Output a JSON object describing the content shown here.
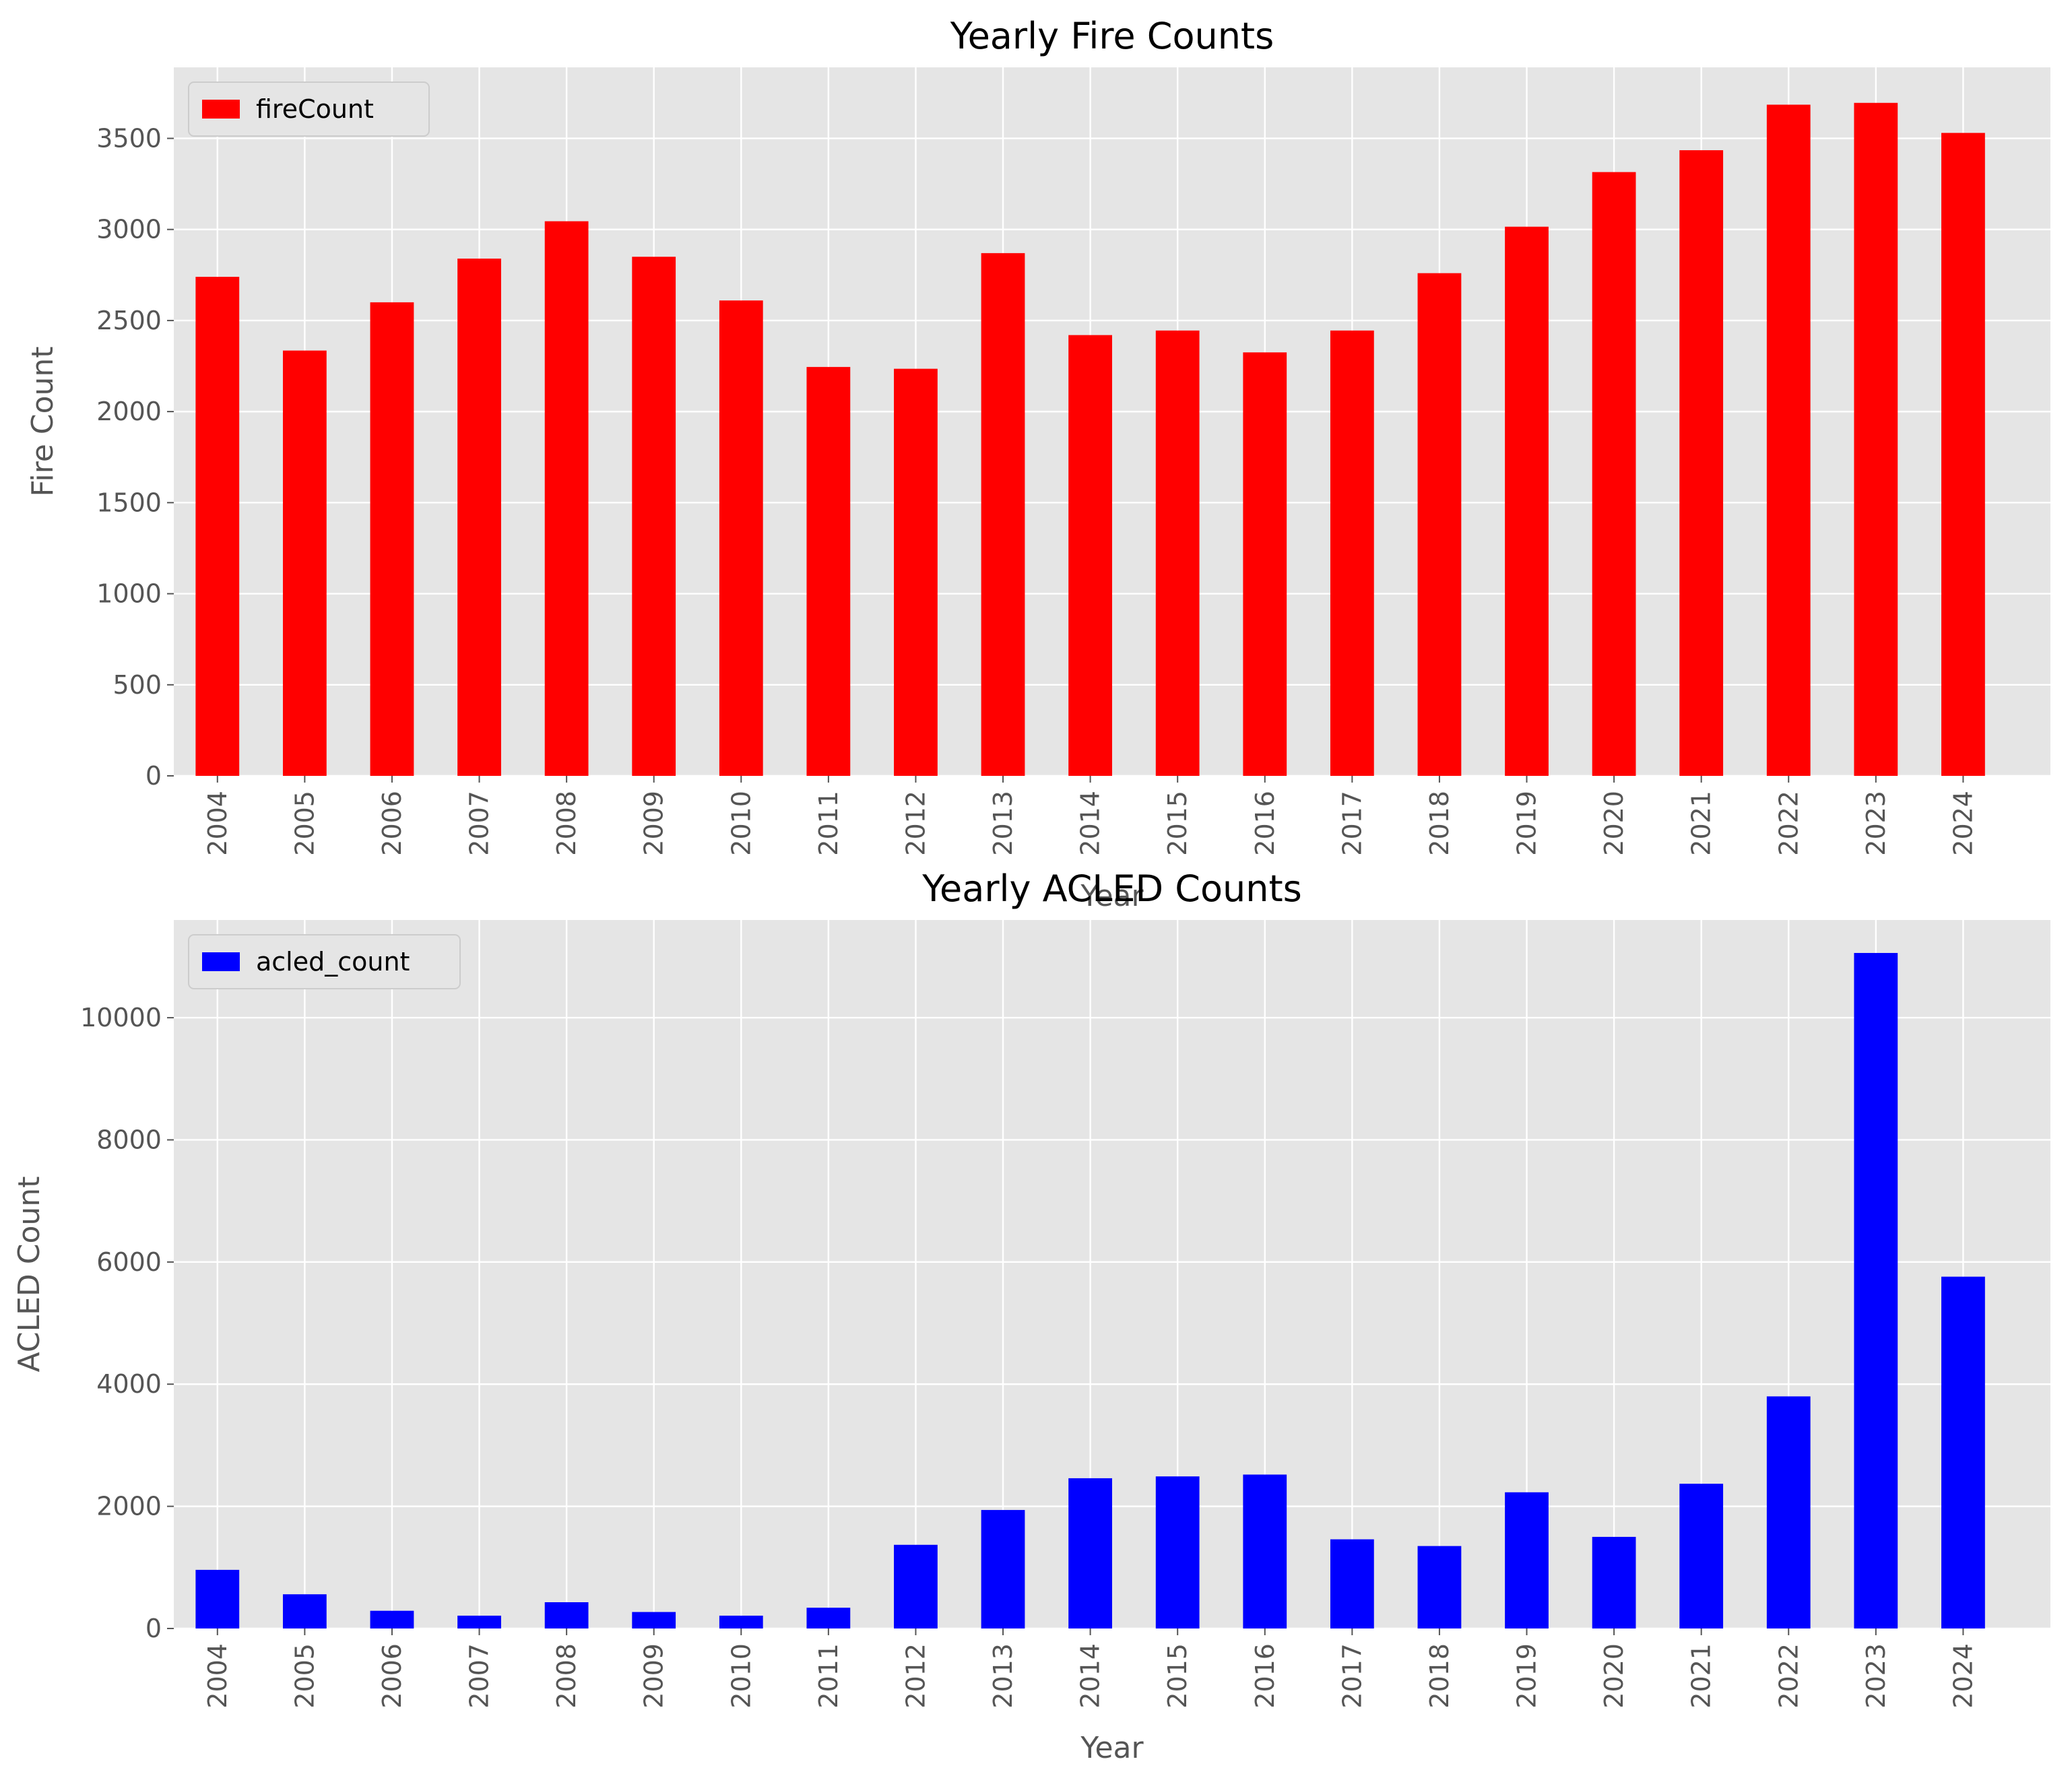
{
  "chart_data": [
    {
      "type": "bar",
      "title": "Yearly Fire Counts",
      "xlabel": "Year",
      "ylabel": "Fire Count",
      "categories": [
        "2004",
        "2005",
        "2006",
        "2007",
        "2008",
        "2009",
        "2010",
        "2011",
        "2012",
        "2013",
        "2014",
        "2015",
        "2016",
        "2017",
        "2018",
        "2019",
        "2020",
        "2021",
        "2022",
        "2023",
        "2024"
      ],
      "series": [
        {
          "name": "fireCount",
          "color": "#ff0000",
          "values": [
            2740,
            2335,
            2600,
            2840,
            3045,
            2850,
            2610,
            2245,
            2235,
            2870,
            2420,
            2445,
            2325,
            2445,
            2760,
            3015,
            3315,
            3435,
            3685,
            3695,
            3530
          ]
        }
      ],
      "ylim": [
        0,
        3890
      ],
      "yticks": [
        0,
        500,
        1000,
        1500,
        2000,
        2500,
        3000,
        3500
      ],
      "ytick_labels": [
        "0",
        "500",
        "1000",
        "1500",
        "2000",
        "2500",
        "3000",
        "3500"
      ],
      "grid": true,
      "legend": "upper-left",
      "background": "#e5e5e5"
    },
    {
      "type": "bar",
      "title": "Yearly ACLED Counts",
      "xlabel": "Year",
      "ylabel": "ACLED Count",
      "categories": [
        "2004",
        "2005",
        "2006",
        "2007",
        "2008",
        "2009",
        "2010",
        "2011",
        "2012",
        "2013",
        "2014",
        "2015",
        "2016",
        "2017",
        "2018",
        "2019",
        "2020",
        "2021",
        "2022",
        "2023",
        "2024"
      ],
      "series": [
        {
          "name": "acled_count",
          "color": "#0000ff",
          "values": [
            960,
            560,
            290,
            210,
            430,
            270,
            210,
            340,
            1370,
            1940,
            2460,
            2490,
            2520,
            1460,
            1350,
            2230,
            1500,
            2370,
            3800,
            11060,
            5760
          ]
        }
      ],
      "ylim": [
        0,
        11600
      ],
      "yticks": [
        0,
        2000,
        4000,
        6000,
        8000,
        10000
      ],
      "ytick_labels": [
        "0",
        "2000",
        "4000",
        "6000",
        "8000",
        "10000"
      ],
      "grid": true,
      "legend": "upper-left",
      "background": "#e5e5e5"
    }
  ]
}
